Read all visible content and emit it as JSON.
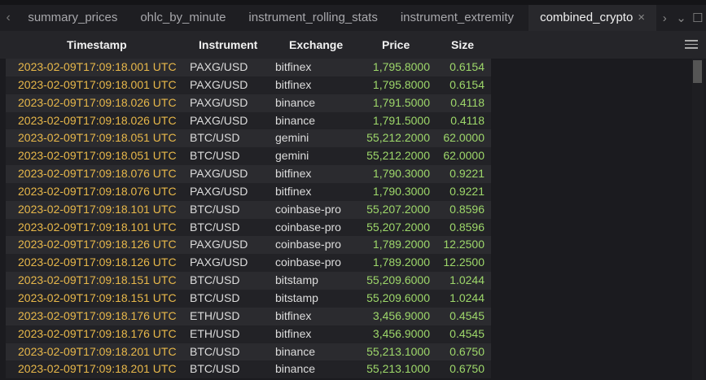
{
  "tabs": [
    {
      "label": "summary_prices"
    },
    {
      "label": "ohlc_by_minute"
    },
    {
      "label": "instrument_rolling_stats"
    },
    {
      "label": "instrument_extremity"
    },
    {
      "label": "combined_crypto",
      "active": true
    }
  ],
  "tab_close": "×",
  "nav_prev": "‹",
  "nav_next": "›",
  "dropdown": "⌄",
  "maximize": "☐",
  "columns": [
    "Timestamp",
    "Instrument",
    "Exchange",
    "Price",
    "Size"
  ],
  "rows": [
    [
      "2023-02-09T17:09:18.001 UTC",
      "PAXG/USD",
      "bitfinex",
      "1,795.8000",
      "0.6154"
    ],
    [
      "2023-02-09T17:09:18.001 UTC",
      "PAXG/USD",
      "bitfinex",
      "1,795.8000",
      "0.6154"
    ],
    [
      "2023-02-09T17:09:18.026 UTC",
      "PAXG/USD",
      "binance",
      "1,791.5000",
      "0.4118"
    ],
    [
      "2023-02-09T17:09:18.026 UTC",
      "PAXG/USD",
      "binance",
      "1,791.5000",
      "0.4118"
    ],
    [
      "2023-02-09T17:09:18.051 UTC",
      "BTC/USD",
      "gemini",
      "55,212.2000",
      "62.0000"
    ],
    [
      "2023-02-09T17:09:18.051 UTC",
      "BTC/USD",
      "gemini",
      "55,212.2000",
      "62.0000"
    ],
    [
      "2023-02-09T17:09:18.076 UTC",
      "PAXG/USD",
      "bitfinex",
      "1,790.3000",
      "0.9221"
    ],
    [
      "2023-02-09T17:09:18.076 UTC",
      "PAXG/USD",
      "bitfinex",
      "1,790.3000",
      "0.9221"
    ],
    [
      "2023-02-09T17:09:18.101 UTC",
      "BTC/USD",
      "coinbase-pro",
      "55,207.2000",
      "0.8596"
    ],
    [
      "2023-02-09T17:09:18.101 UTC",
      "BTC/USD",
      "coinbase-pro",
      "55,207.2000",
      "0.8596"
    ],
    [
      "2023-02-09T17:09:18.126 UTC",
      "PAXG/USD",
      "coinbase-pro",
      "1,789.2000",
      "12.2500"
    ],
    [
      "2023-02-09T17:09:18.126 UTC",
      "PAXG/USD",
      "coinbase-pro",
      "1,789.2000",
      "12.2500"
    ],
    [
      "2023-02-09T17:09:18.151 UTC",
      "BTC/USD",
      "bitstamp",
      "55,209.6000",
      "1.0244"
    ],
    [
      "2023-02-09T17:09:18.151 UTC",
      "BTC/USD",
      "bitstamp",
      "55,209.6000",
      "1.0244"
    ],
    [
      "2023-02-09T17:09:18.176 UTC",
      "ETH/USD",
      "bitfinex",
      "3,456.9000",
      "0.4545"
    ],
    [
      "2023-02-09T17:09:18.176 UTC",
      "ETH/USD",
      "bitfinex",
      "3,456.9000",
      "0.4545"
    ],
    [
      "2023-02-09T17:09:18.201 UTC",
      "BTC/USD",
      "binance",
      "55,213.1000",
      "0.6750"
    ],
    [
      "2023-02-09T17:09:18.201 UTC",
      "BTC/USD",
      "binance",
      "55,213.1000",
      "0.6750"
    ]
  ],
  "colors": {
    "timestamp": "#e8b84a",
    "number": "#9ed86a"
  }
}
